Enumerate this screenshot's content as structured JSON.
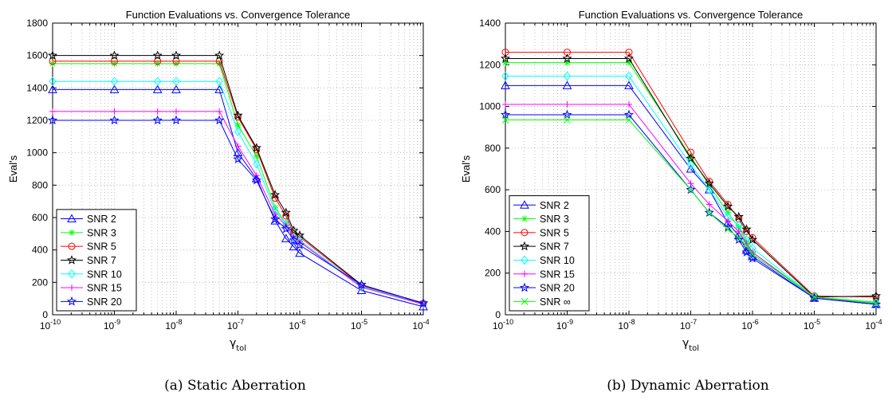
{
  "captions": [
    "(a) Static Aberration",
    "(b) Dynamic Aberration"
  ],
  "chart_data": [
    {
      "type": "line",
      "title": "Function Evaluations vs. Convergence Tolerance",
      "xlabel": "γ",
      "xlabel_sub": "tol",
      "ylabel": "Eval's",
      "xscale": "log",
      "xlim": [
        1e-10,
        0.0001
      ],
      "ylim": [
        0,
        1800
      ],
      "xticks": [
        "10^-10",
        "10^-9",
        "10^-8",
        "10^-7",
        "10^-6",
        "10^-5",
        "10^-4"
      ],
      "yticks": [
        "0",
        "200",
        "400",
        "600",
        "800",
        "1000",
        "1200",
        "1400",
        "1600",
        "1800"
      ],
      "grid": true,
      "legend_position": "lower-left",
      "x": [
        1e-10,
        1e-09,
        5e-09,
        1e-08,
        5e-08,
        1e-07,
        2e-07,
        4e-07,
        6e-07,
        8e-07,
        1e-06,
        1e-05,
        0.0001
      ],
      "series": [
        {
          "name": "SNR 2",
          "color": "#0000ff",
          "marker": "triangle",
          "values": [
            1390,
            1390,
            1390,
            1390,
            1390,
            1000,
            840,
            580,
            470,
            420,
            380,
            150,
            50
          ]
        },
        {
          "name": "SNR 3",
          "color": "#00ff00",
          "marker": "asterisk",
          "values": [
            1550,
            1550,
            1550,
            1550,
            1550,
            1170,
            980,
            660,
            560,
            480,
            450,
            170,
            65
          ]
        },
        {
          "name": "SNR 5",
          "color": "#ff0000",
          "marker": "circle",
          "values": [
            1565,
            1565,
            1565,
            1565,
            1565,
            1220,
            1020,
            720,
            610,
            500,
            480,
            180,
            70
          ]
        },
        {
          "name": "SNR 7",
          "color": "#000000",
          "marker": "star",
          "values": [
            1600,
            1600,
            1600,
            1600,
            1600,
            1230,
            1030,
            740,
            630,
            520,
            490,
            185,
            72
          ]
        },
        {
          "name": "SNR 10",
          "color": "#00ffff",
          "marker": "diamond",
          "values": [
            1440,
            1440,
            1440,
            1440,
            1440,
            1130,
            930,
            640,
            560,
            480,
            460,
            175,
            68
          ]
        },
        {
          "name": "SNR 15",
          "color": "#ff00ff",
          "marker": "plus",
          "values": [
            1255,
            1255,
            1255,
            1255,
            1255,
            1040,
            860,
            620,
            550,
            480,
            450,
            170,
            65
          ]
        },
        {
          "name": "SNR 20",
          "color": "#0000ff",
          "marker": "star",
          "values": [
            1200,
            1200,
            1200,
            1200,
            1200,
            960,
            830,
            590,
            530,
            460,
            430,
            185,
            70
          ]
        }
      ]
    },
    {
      "type": "line",
      "title": "Function Evaluations vs. Convergence Tolerance",
      "xlabel": "γ",
      "xlabel_sub": "tol",
      "ylabel": "Eval's",
      "xscale": "log",
      "xlim": [
        1e-10,
        0.0001
      ],
      "ylim": [
        0,
        1400
      ],
      "xticks": [
        "10^-10",
        "10^-9",
        "10^-8",
        "10^-7",
        "10^-6",
        "10^-5",
        "10^-4"
      ],
      "yticks": [
        "0",
        "200",
        "400",
        "600",
        "800",
        "1000",
        "1200",
        "1400"
      ],
      "grid": true,
      "legend_position": "lower-left",
      "x": [
        1e-10,
        1e-09,
        1e-08,
        1e-07,
        2e-07,
        4e-07,
        6e-07,
        8e-07,
        1e-06,
        1e-05,
        0.0001
      ],
      "series": [
        {
          "name": "SNR 2",
          "color": "#0000ff",
          "marker": "triangle",
          "values": [
            1100,
            1100,
            1100,
            700,
            600,
            440,
            380,
            310,
            280,
            80,
            50
          ]
        },
        {
          "name": "SNR 3",
          "color": "#00ff00",
          "marker": "asterisk",
          "values": [
            1210,
            1210,
            1210,
            760,
            620,
            490,
            420,
            350,
            300,
            85,
            60
          ]
        },
        {
          "name": "SNR 5",
          "color": "#ff0000",
          "marker": "circle",
          "values": [
            1260,
            1260,
            1260,
            780,
            640,
            530,
            460,
            400,
            370,
            90,
            85
          ]
        },
        {
          "name": "SNR 7",
          "color": "#000000",
          "marker": "star",
          "values": [
            1230,
            1230,
            1230,
            750,
            630,
            520,
            470,
            410,
            360,
            85,
            90
          ]
        },
        {
          "name": "SNR 10",
          "color": "#00ffff",
          "marker": "diamond",
          "values": [
            1145,
            1145,
            1145,
            720,
            600,
            470,
            430,
            360,
            320,
            85,
            55
          ]
        },
        {
          "name": "SNR 15",
          "color": "#ff00ff",
          "marker": "plus",
          "values": [
            1010,
            1010,
            1010,
            630,
            530,
            450,
            400,
            340,
            300,
            80,
            55
          ]
        },
        {
          "name": "SNR 20",
          "color": "#0000ff",
          "marker": "star",
          "values": [
            960,
            960,
            960,
            600,
            490,
            420,
            360,
            300,
            270,
            80,
            50
          ]
        },
        {
          "name": "SNR ∞",
          "color": "#00ff00",
          "marker": "x",
          "values": [
            935,
            935,
            935,
            600,
            490,
            410,
            370,
            330,
            290,
            85,
            55
          ]
        }
      ]
    }
  ]
}
